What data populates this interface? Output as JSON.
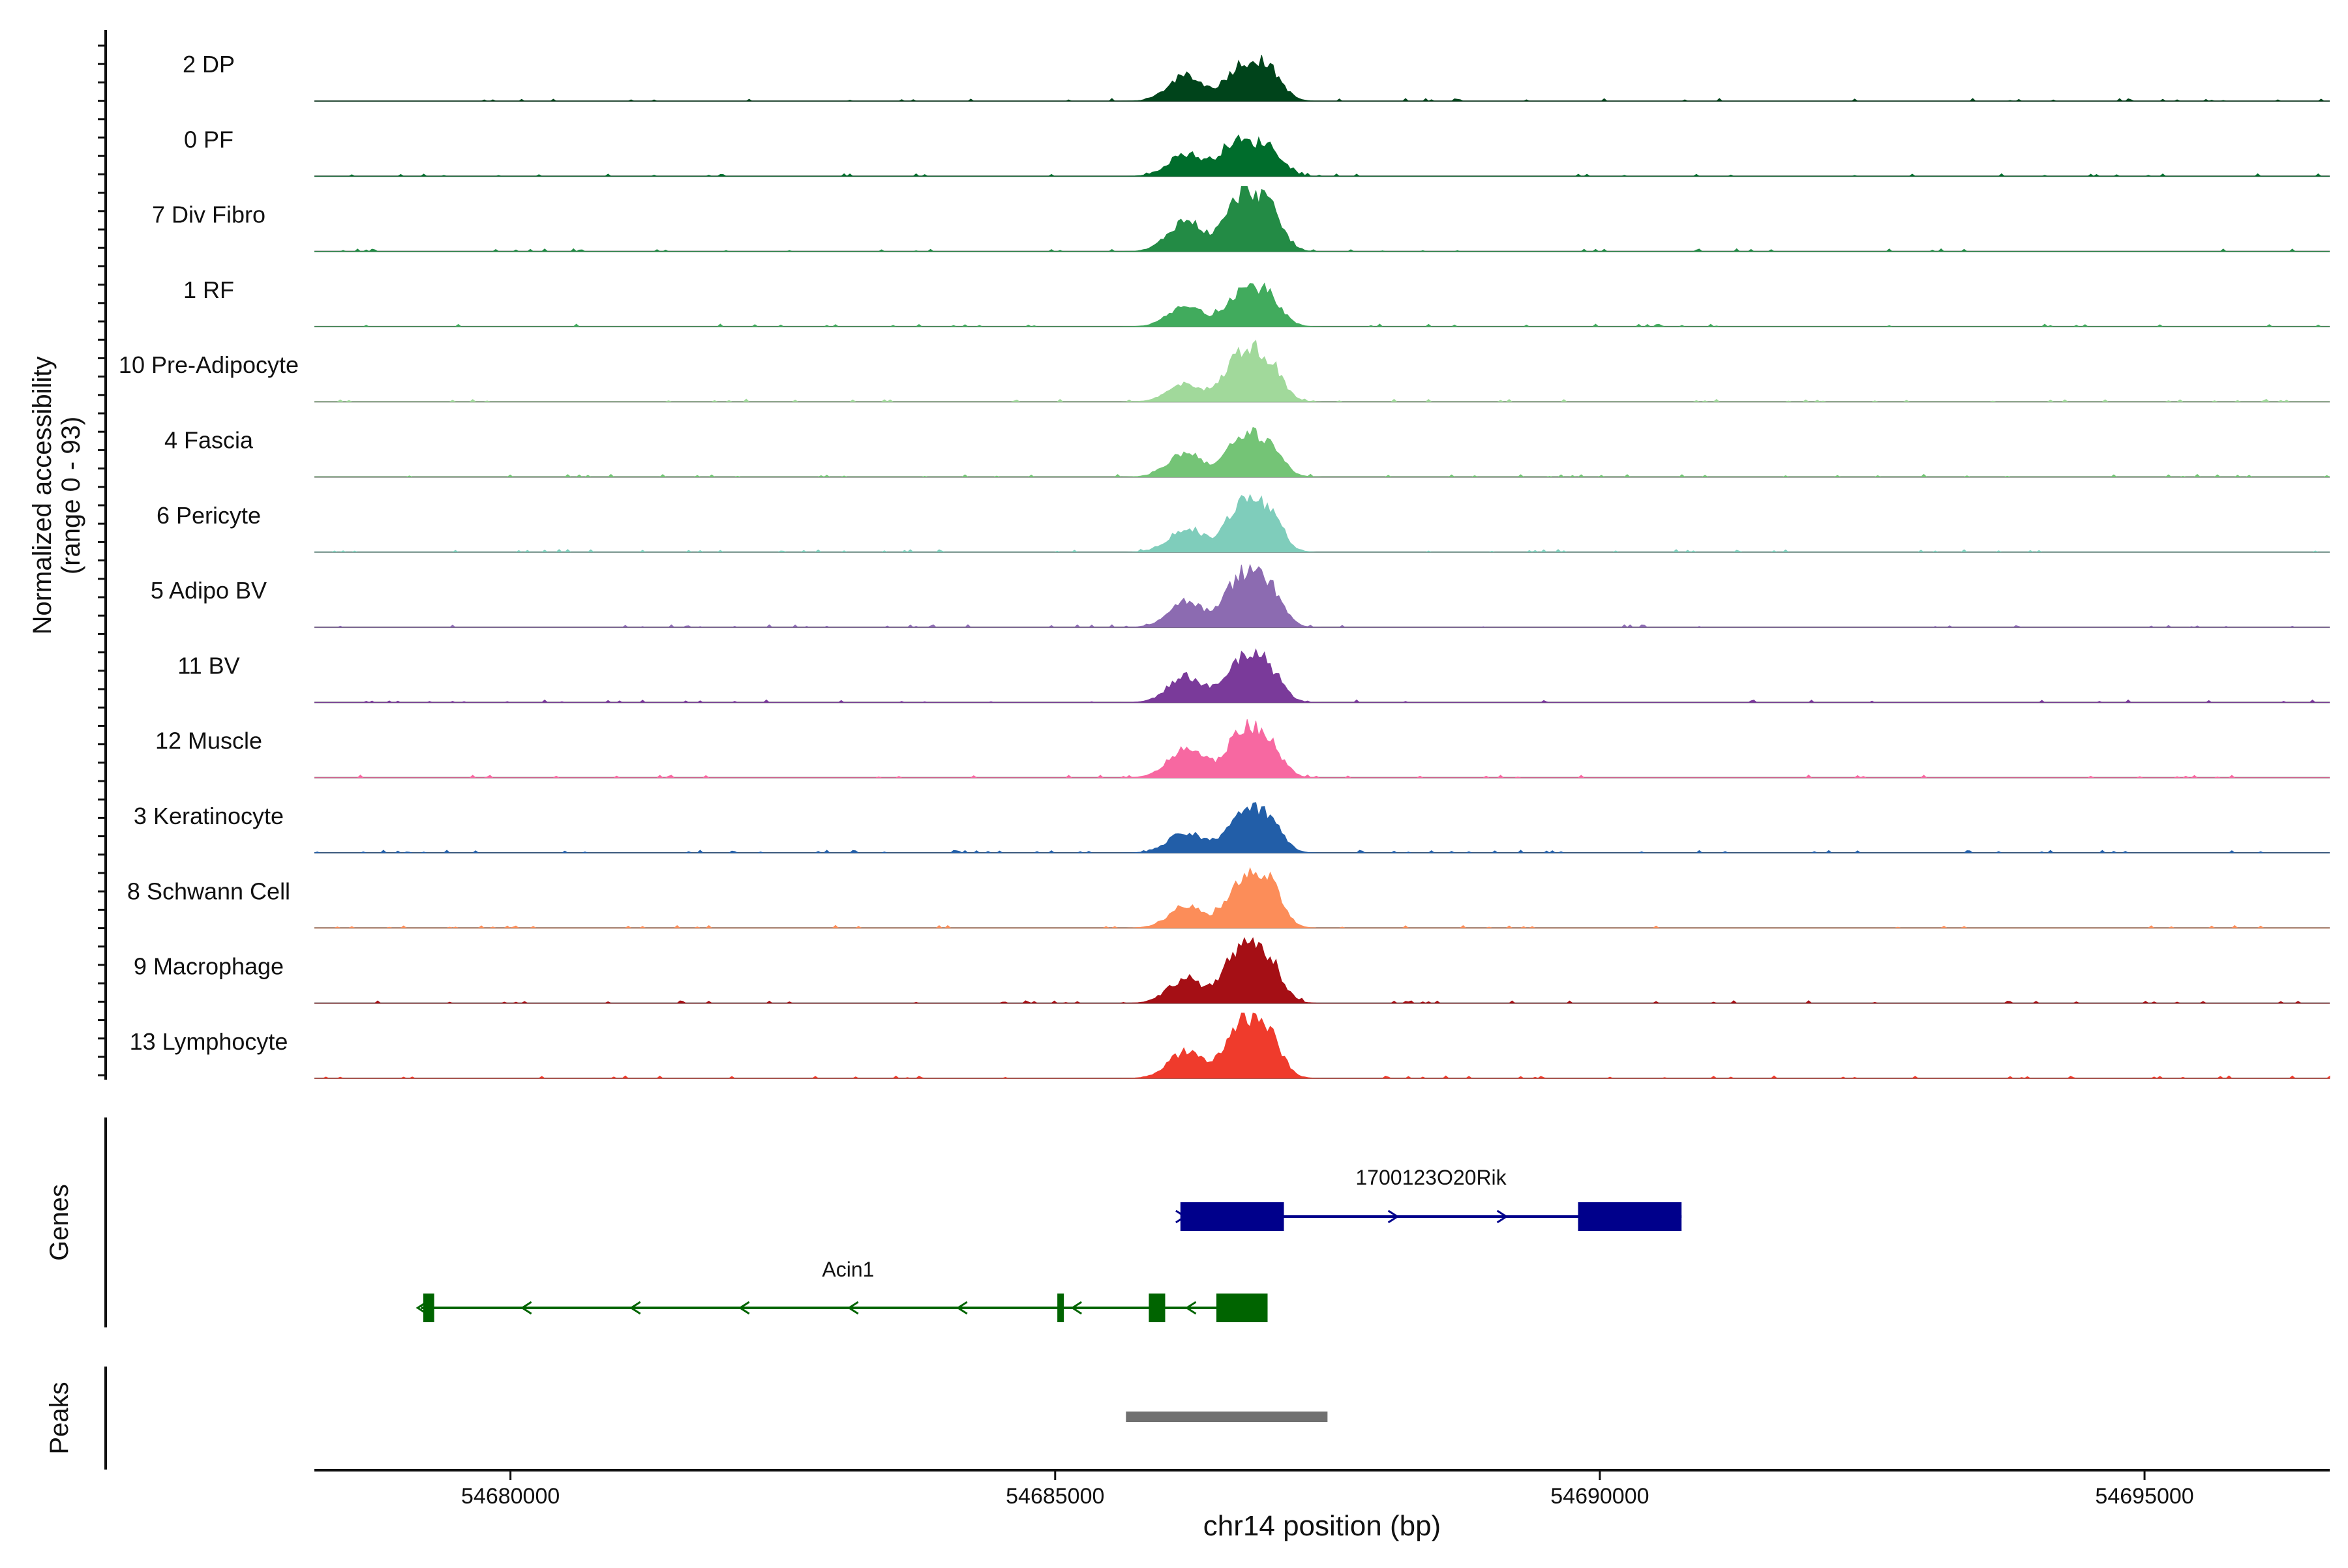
{
  "chart_data": {
    "type": "area",
    "title": "",
    "xlabel": "chr14 position (bp)",
    "xlim": [
      54678200,
      54696700
    ],
    "x_ticks": [
      54680000,
      54685000,
      54690000,
      54695000
    ],
    "x_tick_labels": [
      "54680000",
      "54685000",
      "54690000",
      "54695000"
    ],
    "coverage_panel": {
      "ylabel_line1": "Normalized accessibility",
      "ylabel_line2": "(range 0 - 93)",
      "ylim": [
        0,
        93
      ]
    },
    "genes_label": "Genes",
    "peaks_label": "Peaks",
    "tracks": [
      {
        "name": "2 DP",
        "color": "#00441b",
        "peaks": [
          [
            54686200,
            0.38,
            160
          ],
          [
            54686700,
            0.5,
            140
          ],
          [
            54686950,
            0.46,
            130
          ]
        ]
      },
      {
        "name": "0 PF",
        "color": "#006d2c",
        "peaks": [
          [
            54686200,
            0.34,
            160
          ],
          [
            54686650,
            0.5,
            140
          ],
          [
            54686950,
            0.45,
            130
          ]
        ]
      },
      {
        "name": "7 Div Fibro",
        "color": "#238b45",
        "peaks": [
          [
            54686200,
            0.47,
            160
          ],
          [
            54686700,
            0.78,
            140
          ],
          [
            54686950,
            0.62,
            130
          ]
        ]
      },
      {
        "name": "1 RF",
        "color": "#41ab5d",
        "peaks": [
          [
            54686200,
            0.3,
            160
          ],
          [
            54686700,
            0.5,
            140
          ],
          [
            54686950,
            0.43,
            130
          ]
        ]
      },
      {
        "name": "10 Pre-Adipocyte",
        "color": "#a1d99b",
        "peaks": [
          [
            54686200,
            0.27,
            160
          ],
          [
            54686700,
            0.7,
            140
          ],
          [
            54686950,
            0.55,
            130
          ]
        ]
      },
      {
        "name": "4 Fascia",
        "color": "#74c476",
        "peaks": [
          [
            54686200,
            0.37,
            160
          ],
          [
            54686700,
            0.52,
            140
          ],
          [
            54686950,
            0.48,
            130
          ]
        ]
      },
      {
        "name": "6 Pericyte",
        "color": "#7fcdbb",
        "peaks": [
          [
            54686200,
            0.35,
            160
          ],
          [
            54686700,
            0.67,
            140
          ],
          [
            54686950,
            0.55,
            130
          ]
        ]
      },
      {
        "name": "5 Adipo BV",
        "color": "#8c6bb1",
        "peaks": [
          [
            54686200,
            0.4,
            160
          ],
          [
            54686700,
            0.72,
            140
          ],
          [
            54686950,
            0.58,
            130
          ]
        ]
      },
      {
        "name": "11 BV",
        "color": "#7a3a9a",
        "peaks": [
          [
            54686200,
            0.4,
            160
          ],
          [
            54686700,
            0.62,
            140
          ],
          [
            54686950,
            0.48,
            130
          ]
        ]
      },
      {
        "name": "12 Muscle",
        "color": "#f768a1",
        "peaks": [
          [
            54686200,
            0.44,
            160
          ],
          [
            54686700,
            0.65,
            140
          ],
          [
            54686950,
            0.5,
            130
          ]
        ]
      },
      {
        "name": "3 Keratinocyte",
        "color": "#225ea8",
        "peaks": [
          [
            54686200,
            0.3,
            160
          ],
          [
            54686700,
            0.55,
            140
          ],
          [
            54686950,
            0.48,
            130
          ]
        ]
      },
      {
        "name": "8 Schwann Cell",
        "color": "#fc8d59",
        "peaks": [
          [
            54686200,
            0.32,
            160
          ],
          [
            54686700,
            0.6,
            140
          ],
          [
            54686950,
            0.65,
            130
          ]
        ]
      },
      {
        "name": "9 Macrophage",
        "color": "#a50f15",
        "peaks": [
          [
            54686200,
            0.38,
            160
          ],
          [
            54686700,
            0.82,
            140
          ],
          [
            54686950,
            0.62,
            130
          ]
        ]
      },
      {
        "name": "13 Lymphocyte",
        "color": "#ef3b2c",
        "peaks": [
          [
            54686200,
            0.4,
            160
          ],
          [
            54686700,
            0.82,
            140
          ],
          [
            54686950,
            0.62,
            130
          ]
        ]
      }
    ],
    "genes": [
      {
        "name": "1700123O20Rik",
        "strand": "+",
        "color": "#00008b",
        "start": 54686150,
        "end": 54690750,
        "exons": [
          [
            54686150,
            54687100
          ],
          [
            54689800,
            54690750
          ]
        ],
        "arrows": [
          54686150,
          54688100,
          54689100
        ]
      },
      {
        "name": "Acin1",
        "strand": "-",
        "color": "#006400",
        "start": 54679180,
        "end": 54686950,
        "exons": [
          [
            54679200,
            54679300
          ],
          [
            54685020,
            54685080
          ],
          [
            54685860,
            54686010
          ],
          [
            54686480,
            54686950
          ]
        ],
        "arrows": [
          54679190,
          54680150,
          54681150,
          54682150,
          54683150,
          54684150,
          54685200,
          54686250
        ]
      }
    ],
    "peaks": [
      [
        54685650,
        54687500
      ]
    ],
    "peak_color": "#707070"
  }
}
